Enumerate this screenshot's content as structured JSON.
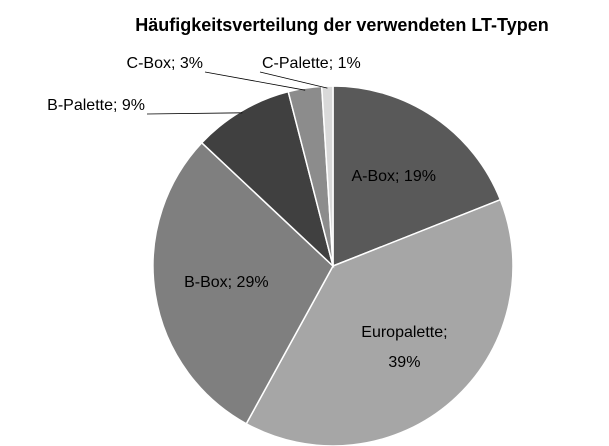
{
  "chart_data": {
    "type": "pie",
    "title": "Häufigkeitsverteilung der verwendeten LT-Typen",
    "values": [
      19,
      39,
      29,
      9,
      3,
      1
    ],
    "value_labels": [
      "A-Box; 19%",
      "Europalette; 39%",
      "B-Box; 29%",
      "B-Palette; 9%",
      "C-Box; 3%",
      "C-Palette; 1%"
    ],
    "colors": [
      "#595959",
      "#a6a6a6",
      "#7f7f7f",
      "#404040",
      "#8c8c8c",
      "#d9d9d9"
    ]
  }
}
